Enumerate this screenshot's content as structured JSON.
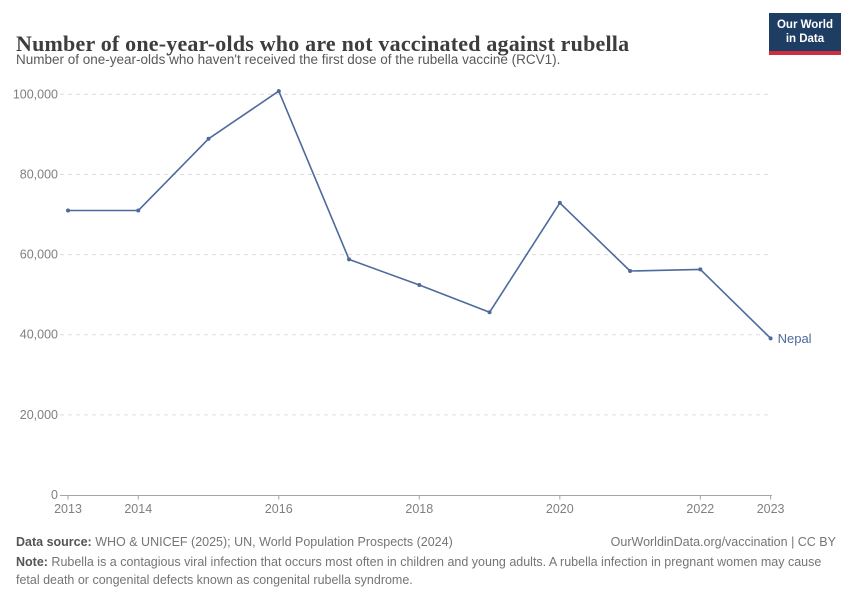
{
  "header": {
    "title": "Number of one-year-olds who are not vaccinated against rubella",
    "subtitle": "Number of one-year-olds who haven't received the first dose of the rubella vaccine (RCV1).",
    "logo": {
      "line1": "Our World",
      "line2": "in Data"
    }
  },
  "chart_data": {
    "type": "line",
    "title": "Number of one-year-olds who are not vaccinated against rubella",
    "entity_label": "Nepal",
    "x": [
      2013,
      2014,
      2015,
      2016,
      2017,
      2018,
      2019,
      2020,
      2021,
      2022,
      2023
    ],
    "series": [
      {
        "name": "Nepal",
        "color": "#4c6a9c",
        "values": [
          71000,
          71000,
          88900,
          100800,
          58800,
          52400,
          45600,
          72900,
          55900,
          56300,
          39100
        ]
      }
    ],
    "ylim": [
      0,
      100000
    ],
    "yticks": [
      0,
      20000,
      40000,
      60000,
      80000,
      100000
    ],
    "ytick_labels": [
      "0",
      "20,000",
      "40,000",
      "60,000",
      "80,000",
      "100,000"
    ],
    "xticks": [
      2013,
      2014,
      2016,
      2018,
      2020,
      2022,
      2023
    ],
    "xtick_labels": [
      "2013",
      "2014",
      "2016",
      "2018",
      "2020",
      "2022",
      "2023"
    ],
    "grid": true,
    "grid_color": "#dcdcdc",
    "axis_color": "#a5a5a5",
    "tick_label_color": "#808080",
    "legend_position": "end-of-line"
  },
  "footer": {
    "datasource_label": "Data source:",
    "datasource_text": " WHO & UNICEF (2025); UN, World Population Prospects (2024)",
    "link": "OurWorldinData.org/vaccination | CC BY",
    "note_label": "Note:",
    "note_text": " Rubella is a contagious viral infection that occurs most often in children and young adults. A rubella infection in pregnant women may cause fetal death or congenital defects known as congenital rubella syndrome."
  }
}
